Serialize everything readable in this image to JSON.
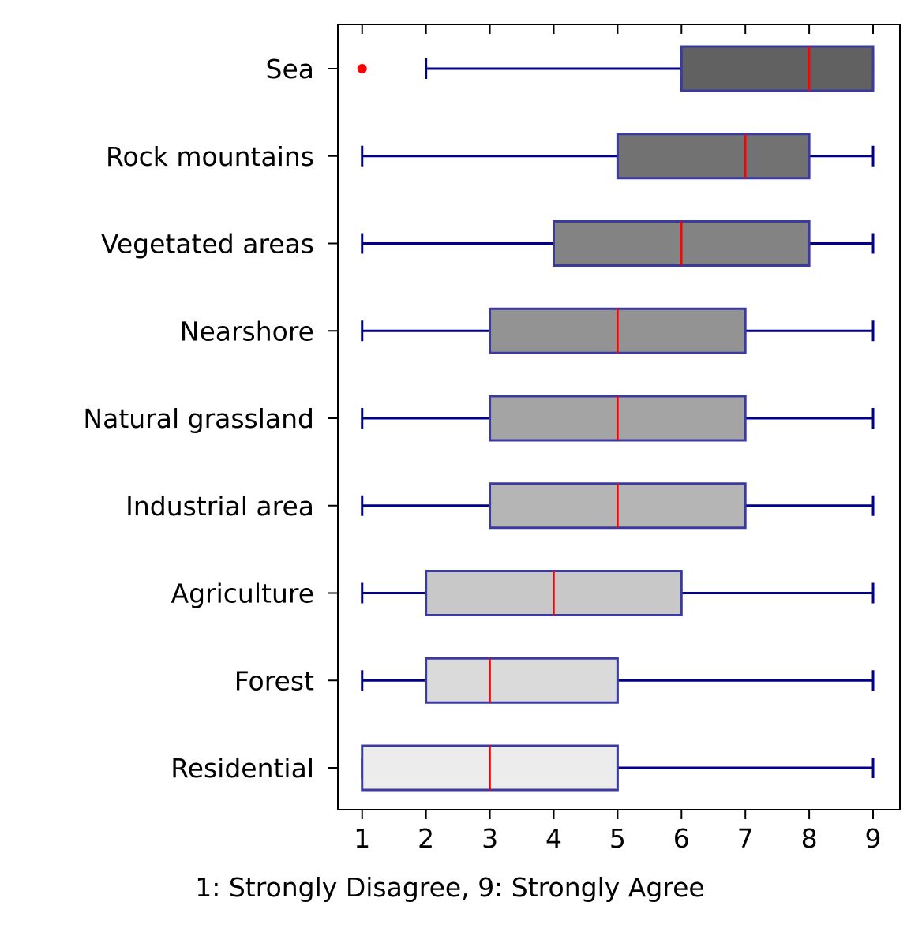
{
  "chart_data": {
    "type": "boxplot",
    "orientation": "horizontal",
    "title": "",
    "xlabel": "1: Strongly Disagree, 9: Strongly Agree",
    "ylabel": "",
    "xlim": [
      0.62,
      9.42
    ],
    "xticks": [
      1,
      2,
      3,
      4,
      5,
      6,
      7,
      8,
      9
    ],
    "grid": false,
    "colors": {
      "whisker": "#00008b",
      "box_edge": "#3a3aa0",
      "median": "#ff0000",
      "outlier": "#ff0000",
      "axes": "#000000"
    },
    "categories": [
      {
        "label": "Sea",
        "whisker_low": 2,
        "q1": 6,
        "median": 8,
        "q3": 9,
        "whisker_high": 9,
        "outliers": [
          1
        ],
        "fill": "#616161"
      },
      {
        "label": "Rock mountains",
        "whisker_low": 1,
        "q1": 5,
        "median": 7,
        "q3": 8,
        "whisker_high": 9,
        "outliers": [],
        "fill": "#727272"
      },
      {
        "label": "Vegetated areas",
        "whisker_low": 1,
        "q1": 4,
        "median": 6,
        "q3": 8,
        "whisker_high": 9,
        "outliers": [],
        "fill": "#838383"
      },
      {
        "label": "Nearshore",
        "whisker_low": 1,
        "q1": 3,
        "median": 5,
        "q3": 7,
        "whisker_high": 9,
        "outliers": [],
        "fill": "#939393"
      },
      {
        "label": "Natural grassland",
        "whisker_low": 1,
        "q1": 3,
        "median": 5,
        "q3": 7,
        "whisker_high": 9,
        "outliers": [],
        "fill": "#a4a4a4"
      },
      {
        "label": "Industrial area",
        "whisker_low": 1,
        "q1": 3,
        "median": 5,
        "q3": 7,
        "whisker_high": 9,
        "outliers": [],
        "fill": "#b5b5b5"
      },
      {
        "label": "Agriculture",
        "whisker_low": 1,
        "q1": 2,
        "median": 4,
        "q3": 6,
        "whisker_high": 9,
        "outliers": [],
        "fill": "#c8c8c8"
      },
      {
        "label": "Forest",
        "whisker_low": 1,
        "q1": 2,
        "median": 3,
        "q3": 5,
        "whisker_high": 9,
        "outliers": [],
        "fill": "#dadada"
      },
      {
        "label": "Residential",
        "whisker_low": 1,
        "q1": 1,
        "median": 3,
        "q3": 5,
        "whisker_high": 9,
        "outliers": [],
        "fill": "#ececec"
      }
    ]
  }
}
